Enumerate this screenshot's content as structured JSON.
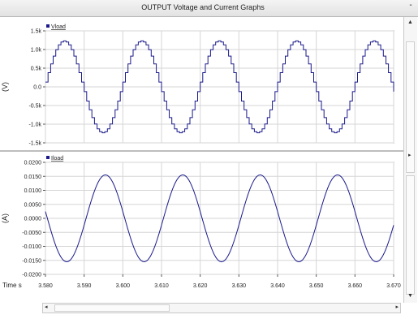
{
  "window": {
    "title": "OUTPUT Voltage and Current Graphs",
    "minimize_label": "-"
  },
  "colors": {
    "trace": "#1a1a8c",
    "grid": "#d6d6d6",
    "axis": "#555555",
    "text": "#222222"
  },
  "chart_data": [
    {
      "type": "line",
      "series": [
        {
          "name": "Vload",
          "amplitude": 1230,
          "period": 0.02,
          "peak_x": 3.585,
          "steps_per_period": 30
        }
      ],
      "yticks": [
        "1.5k",
        "1.0k",
        "0.5k",
        "0.0",
        "-0.5k",
        "-1.0k",
        "-1.5k"
      ],
      "ylim": [
        -1500,
        1500
      ],
      "ylabel": "(V)",
      "grid": true
    },
    {
      "type": "line",
      "series": [
        {
          "name": "Iload",
          "amplitude": 0.0155,
          "period": 0.02,
          "peak_x": 3.5955
        }
      ],
      "yticks": [
        "0.0200",
        "0.0150",
        "0.0100",
        "0.0050",
        "0.0000",
        "-0.0050",
        "-0.0100",
        "-0.0150",
        "-0.0200"
      ],
      "ylim": [
        -0.02,
        0.02
      ],
      "ylabel": "(A)",
      "grid": true
    }
  ],
  "time_axis": {
    "label": "Time s",
    "xlim": [
      3.58,
      3.67
    ],
    "ticks": [
      "3.580",
      "3.590",
      "3.600",
      "3.610",
      "3.620",
      "3.630",
      "3.640",
      "3.650",
      "3.660",
      "3.670"
    ]
  }
}
